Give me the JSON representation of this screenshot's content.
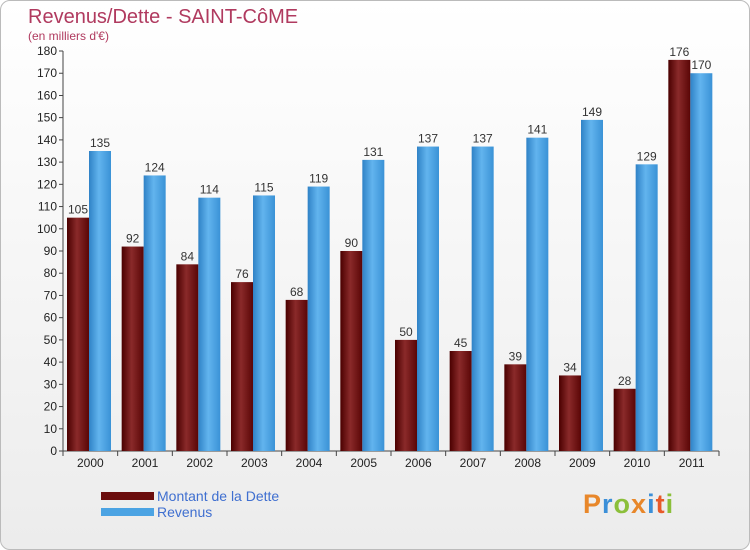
{
  "chart_data": {
    "type": "bar",
    "title": "Revenus/Dette - SAINT-CôME",
    "subtitle": "(en milliers d'€)",
    "categories": [
      "2000",
      "2001",
      "2002",
      "2003",
      "2004",
      "2005",
      "2006",
      "2007",
      "2008",
      "2009",
      "2010",
      "2011"
    ],
    "series": [
      {
        "name": "Montant de la Dette",
        "color": "#6b0d0d",
        "values": [
          105,
          92,
          84,
          76,
          68,
          90,
          50,
          45,
          39,
          34,
          28,
          176
        ]
      },
      {
        "name": "Revenus",
        "color": "#4ba3e3",
        "values": [
          135,
          124,
          114,
          115,
          119,
          131,
          137,
          137,
          141,
          149,
          129,
          170
        ]
      }
    ],
    "ylim": [
      0,
      180
    ],
    "ytick_step": 10,
    "grid": false,
    "legend_position": "bottom-left"
  },
  "legend": {
    "debt_label": "Montant de la Dette",
    "revenue_label": "Revenus"
  },
  "logo": {
    "text": "Proxiti"
  }
}
